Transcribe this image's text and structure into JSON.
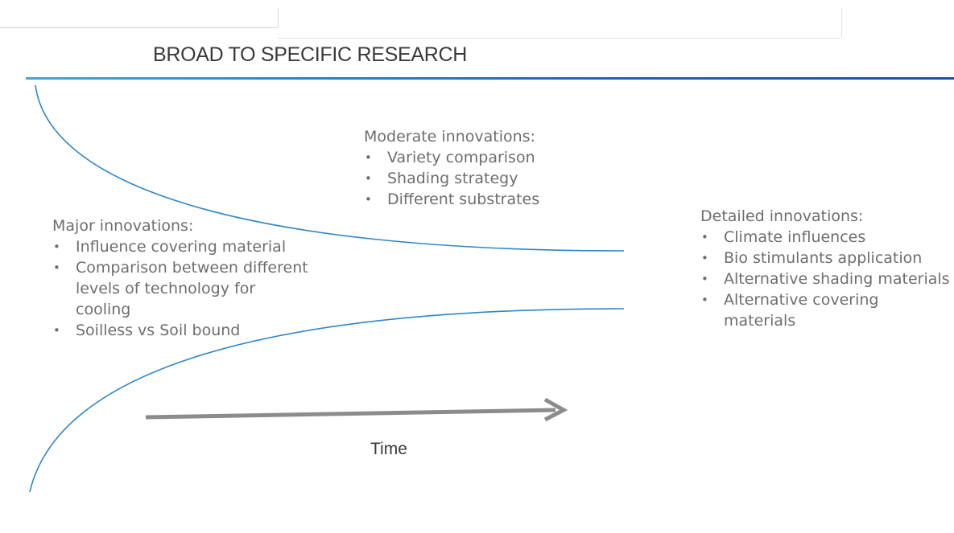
{
  "title": "BROAD TO SPECIFIC RESEARCH",
  "accent_color": "#2a7dc2",
  "arrow_color": "#8c8c8c",
  "major": {
    "heading": "Major innovations:",
    "items": [
      "Influence covering material",
      "Comparison between different levels of technology for cooling",
      "Soilless vs Soil bound"
    ]
  },
  "moderate": {
    "heading": "Moderate innovations:",
    "items": [
      "Variety comparison",
      "Shading strategy",
      "Different substrates"
    ]
  },
  "detailed": {
    "heading": "Detailed innovations:",
    "items": [
      "Climate influences",
      "Bio stimulants application",
      "Alternative shading materials",
      "Alternative covering materials"
    ]
  },
  "time_label": "Time"
}
